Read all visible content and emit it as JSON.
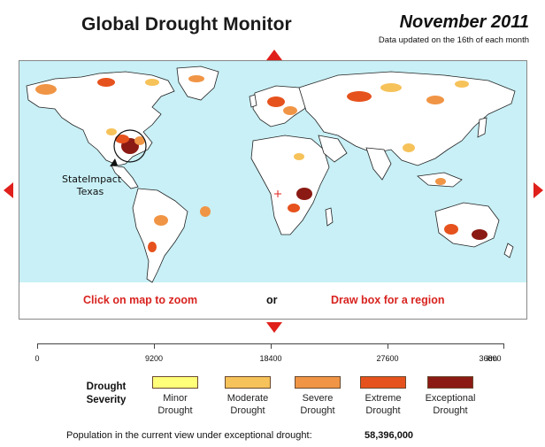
{
  "header": {
    "title": "Global Drought Monitor",
    "date": "November 2011",
    "update_note": "Data updated on the 16th of each month"
  },
  "colors": {
    "accent_red": "#e0201b",
    "ocean": "#c8f0f6",
    "land": "#ffffff",
    "border": "#222222"
  },
  "navigation": {
    "pan_up": "arrow-up-icon",
    "pan_down": "arrow-down-icon",
    "pan_left": "arrow-left-icon",
    "pan_right": "arrow-right-icon"
  },
  "map": {
    "annotation": {
      "line1": "StateImpact",
      "line2": "Texas"
    },
    "hints": {
      "zoom": "Click on map to zoom",
      "or": "or",
      "region": "Draw box for a region"
    }
  },
  "scale_bar": {
    "ticks": [
      "0",
      "9200",
      "18400",
      "27600",
      "36800"
    ],
    "unit": "km"
  },
  "legend": {
    "title": "Drought Severity",
    "items": [
      {
        "label_line1": "Minor",
        "label_line2": "Drought",
        "color": "#ffff7a"
      },
      {
        "label_line1": "Moderate",
        "label_line2": "Drought",
        "color": "#f6c25a"
      },
      {
        "label_line1": "Severe",
        "label_line2": "Drought",
        "color": "#f09545"
      },
      {
        "label_line1": "Extreme",
        "label_line2": "Drought",
        "color": "#e6521d"
      },
      {
        "label_line1": "Exceptional",
        "label_line2": "Drought",
        "color": "#8b1a14"
      }
    ]
  },
  "population": {
    "label": "Population in the current view under exceptional drought:",
    "value": "58,396,000"
  }
}
